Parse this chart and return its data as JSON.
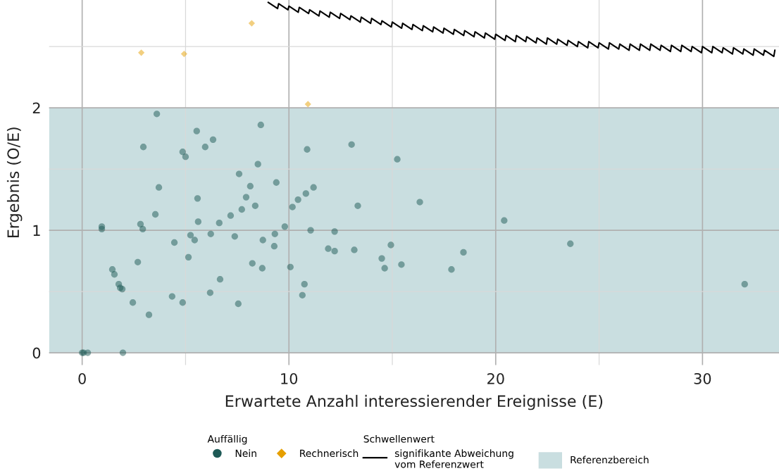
{
  "chart_data": {
    "type": "scatter",
    "xlabel": "Erwartete Anzahl interessierender Ereignisse (E)",
    "ylabel": "Ergebnis (O/E)",
    "legend_title": "Auffällig",
    "annotations": [
      "Schwellenwert"
    ],
    "xlim": [
      -1.6,
      33.7
    ],
    "ylim": [
      -0.1,
      2.88
    ],
    "xticks": [
      0,
      {
        "value": 5,
        "label": null
      },
      10,
      {
        "value": 15,
        "label": null
      },
      20,
      {
        "value": 25,
        "label": null
      },
      30
    ],
    "yticks": [
      0,
      {
        "value": 0.5,
        "label": null
      },
      1,
      {
        "value": 1.5,
        "label": null
      },
      2,
      {
        "value": 2.5,
        "label": null
      }
    ],
    "grid": true,
    "legend": "bottom",
    "bands": [
      {
        "axis": "y",
        "from": 0,
        "to": 2,
        "label": "Referenzbereich",
        "color": "#c9dee0"
      }
    ],
    "series": [
      {
        "name": "Nein",
        "color": "#1e5a56",
        "marker": "circle",
        "x": [
          0,
          0.07,
          0.27,
          1.97,
          0.95,
          0.95,
          1.46,
          1.56,
          1.77,
          1.84,
          1.94,
          2.45,
          2.69,
          2.82,
          2.93,
          2.96,
          3.23,
          3.54,
          3.61,
          3.71,
          4.35,
          4.46,
          4.86,
          4.86,
          5.0,
          5.14,
          5.24,
          5.44,
          5.54,
          5.58,
          5.61,
          5.95,
          6.19,
          6.22,
          6.33,
          6.63,
          6.67,
          7.18,
          7.38,
          7.55,
          7.59,
          7.72,
          7.93,
          8.13,
          8.23,
          8.37,
          8.5,
          8.64,
          8.74,
          8.71,
          9.29,
          9.32,
          9.39,
          9.8,
          10.07,
          10.17,
          10.44,
          10.65,
          10.75,
          10.82,
          10.88,
          11.05,
          11.19,
          11.9,
          12.21,
          12.21,
          13.03,
          13.16,
          13.33,
          14.49,
          14.63,
          14.93,
          15.24,
          15.44,
          16.33,
          17.86,
          18.44,
          20.41,
          23.61,
          32.04
        ],
        "values": [
          0,
          0,
          0,
          0,
          1.03,
          1.01,
          0.68,
          0.64,
          0.56,
          0.53,
          0.52,
          0.41,
          0.74,
          1.05,
          1.01,
          1.68,
          0.31,
          1.13,
          1.95,
          1.35,
          0.46,
          0.9,
          1.64,
          0.41,
          1.6,
          0.78,
          0.96,
          0.92,
          1.81,
          1.26,
          1.07,
          1.68,
          0.49,
          0.97,
          1.74,
          1.06,
          0.6,
          1.12,
          0.95,
          0.4,
          1.46,
          1.17,
          1.27,
          1.36,
          0.73,
          1.2,
          1.54,
          1.86,
          0.92,
          0.69,
          0.87,
          0.97,
          1.39,
          1.03,
          0.7,
          1.19,
          1.25,
          0.47,
          0.56,
          1.3,
          1.66,
          1.0,
          1.35,
          0.85,
          0.99,
          0.83,
          1.7,
          0.84,
          1.2,
          0.77,
          0.69,
          0.88,
          1.58,
          0.72,
          1.23,
          0.68,
          0.82,
          1.08,
          0.89,
          0.56
        ]
      },
      {
        "name": "Rechnerisch",
        "color": "#e69f00",
        "marker": "diamond",
        "x": [
          2.86,
          4.93,
          8.2,
          10.92
        ],
        "values": [
          2.45,
          2.44,
          2.69,
          2.03
        ]
      },
      {
        "name": "signifikante Abweichung\nvom Referenzwert",
        "type": "line",
        "color": "#000000",
        "marker": "none",
        "line_style": "solid",
        "x": [
          9,
          9.45,
          9.5,
          9.95,
          10,
          10.45,
          10.5,
          10.95,
          11,
          11.45,
          11.5,
          11.95,
          12,
          12.45,
          12.5,
          12.95,
          13,
          13.45,
          13.5,
          13.95,
          14,
          14.45,
          14.5,
          14.95,
          15,
          15.45,
          15.5,
          15.95,
          16,
          16.45,
          16.5,
          16.95,
          17,
          17.45,
          17.5,
          17.95,
          18,
          18.45,
          18.5,
          18.95,
          19,
          19.45,
          19.5,
          19.95,
          20,
          20.45,
          20.5,
          20.95,
          21,
          21.45,
          21.5,
          21.95,
          22,
          22.45,
          22.5,
          22.95,
          23,
          23.45,
          23.5,
          23.95,
          24,
          24.45,
          24.5,
          24.95,
          25,
          25.45,
          25.5,
          25.95,
          26,
          26.45,
          26.5,
          26.95,
          27,
          27.45,
          27.5,
          27.95,
          28,
          28.45,
          28.5,
          28.95,
          29,
          29.45,
          29.5,
          29.95,
          30,
          30.45,
          30.5,
          30.95,
          31,
          31.45,
          31.5,
          31.95,
          32,
          32.45,
          32.5,
          32.95,
          33,
          33.45,
          33.5
        ],
        "values": [
          2.86,
          2.81,
          2.85,
          2.8,
          2.83,
          2.78,
          2.82,
          2.77,
          2.8,
          2.75,
          2.79,
          2.74,
          2.78,
          2.73,
          2.77,
          2.72,
          2.75,
          2.7,
          2.74,
          2.69,
          2.73,
          2.68,
          2.71,
          2.66,
          2.7,
          2.65,
          2.69,
          2.64,
          2.68,
          2.63,
          2.67,
          2.62,
          2.66,
          2.61,
          2.65,
          2.6,
          2.64,
          2.59,
          2.63,
          2.58,
          2.62,
          2.57,
          2.61,
          2.56,
          2.6,
          2.55,
          2.59,
          2.54,
          2.59,
          2.54,
          2.58,
          2.53,
          2.57,
          2.52,
          2.57,
          2.52,
          2.56,
          2.51,
          2.55,
          2.5,
          2.54,
          2.49,
          2.54,
          2.49,
          2.53,
          2.48,
          2.53,
          2.48,
          2.52,
          2.47,
          2.52,
          2.47,
          2.52,
          2.47,
          2.52,
          2.47,
          2.51,
          2.46,
          2.51,
          2.46,
          2.51,
          2.46,
          2.5,
          2.45,
          2.5,
          2.45,
          2.5,
          2.45,
          2.49,
          2.44,
          2.49,
          2.44,
          2.48,
          2.43,
          2.48,
          2.43,
          2.47,
          2.42,
          2.47
        ]
      }
    ]
  }
}
